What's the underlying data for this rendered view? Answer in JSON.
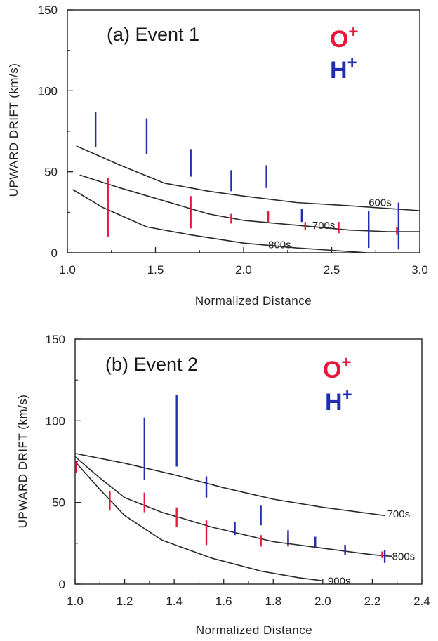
{
  "chart_data": [
    {
      "type": "line",
      "title": "(a) Event 1",
      "xlabel": "Normalized Distance",
      "ylabel": "UPWARD DRIFT (km/s)",
      "xlim": [
        1.0,
        3.0
      ],
      "ylim": [
        0,
        150
      ],
      "xticks": [
        1.0,
        1.5,
        2.0,
        2.5,
        3.0
      ],
      "xtick_labels": [
        "1.0",
        "1.5",
        "2.0",
        "2.5",
        "3.0"
      ],
      "yticks": [
        0,
        50,
        100,
        150
      ],
      "ytick_labels": [
        "0",
        "50",
        "100",
        "150"
      ],
      "legend": [
        {
          "ion": "O",
          "sup": "+",
          "color": "#e8173c"
        },
        {
          "ion": "H",
          "sup": "+",
          "color": "#1f2fb0"
        }
      ],
      "legend_position": "top-right",
      "grid": false,
      "curves": [
        {
          "label": "600s",
          "label_at": [
            2.71,
            31
          ],
          "points": [
            [
              1.05,
              66
            ],
            [
              1.3,
              54
            ],
            [
              1.55,
              43
            ],
            [
              1.8,
              38
            ],
            [
              2.0,
              35
            ],
            [
              2.3,
              31
            ],
            [
              2.6,
              29
            ],
            [
              3.0,
              26
            ]
          ]
        },
        {
          "label": "700s",
          "label_at": [
            2.39,
            17
          ],
          "points": [
            [
              1.07,
              48
            ],
            [
              1.3,
              40
            ],
            [
              1.55,
              32
            ],
            [
              1.8,
              24
            ],
            [
              2.0,
              20
            ],
            [
              2.3,
              17
            ],
            [
              2.6,
              14
            ],
            [
              2.82,
              13
            ],
            [
              3.0,
              13
            ]
          ]
        },
        {
          "label": "800s",
          "label_at": [
            2.14,
            5
          ],
          "points": [
            [
              1.03,
              39
            ],
            [
              1.2,
              28
            ],
            [
              1.45,
              16
            ],
            [
              1.7,
              11
            ],
            [
              2.0,
              6
            ],
            [
              2.3,
              3
            ],
            [
              2.5,
              1.5
            ],
            [
              2.7,
              0
            ]
          ]
        }
      ],
      "series": [
        {
          "name": "O+",
          "color": "#e8173c",
          "bars": [
            {
              "x": 1.23,
              "ymin": 10,
              "ymax": 46
            },
            {
              "x": 1.7,
              "ymin": 15,
              "ymax": 35
            },
            {
              "x": 1.93,
              "ymin": 18,
              "ymax": 24
            },
            {
              "x": 2.14,
              "ymin": 19,
              "ymax": 26
            },
            {
              "x": 2.35,
              "ymin": 14,
              "ymax": 19
            },
            {
              "x": 2.54,
              "ymin": 12,
              "ymax": 19
            },
            {
              "x": 2.71,
              "ymin": 12,
              "ymax": 17
            },
            {
              "x": 2.87,
              "ymin": 11,
              "ymax": 16
            }
          ]
        },
        {
          "name": "H+",
          "color": "#1f2fb0",
          "bars": [
            {
              "x": 1.16,
              "ymin": 65,
              "ymax": 87
            },
            {
              "x": 1.45,
              "ymin": 61,
              "ymax": 83
            },
            {
              "x": 1.7,
              "ymin": 47,
              "ymax": 64
            },
            {
              "x": 1.93,
              "ymin": 38,
              "ymax": 51
            },
            {
              "x": 2.13,
              "ymin": 40,
              "ymax": 54
            },
            {
              "x": 2.33,
              "ymin": 19,
              "ymax": 27
            },
            {
              "x": 2.71,
              "ymin": 3,
              "ymax": 26
            },
            {
              "x": 2.88,
              "ymin": 2,
              "ymax": 31
            }
          ]
        }
      ]
    },
    {
      "type": "line",
      "title": "(b) Event 2",
      "xlabel": "Normalized Distance",
      "ylabel": "UPWARD DRIFT (km/s)",
      "xlim": [
        1.0,
        2.4
      ],
      "ylim": [
        0,
        150
      ],
      "xticks": [
        1.0,
        1.2,
        1.4,
        1.6,
        1.8,
        2.0,
        2.2,
        2.4
      ],
      "xtick_labels": [
        "1.0",
        "1.2",
        "1.4",
        "1.6",
        "1.8",
        "2.0",
        "2.2",
        "2.4"
      ],
      "yticks": [
        0,
        50,
        100,
        150
      ],
      "ytick_labels": [
        "0",
        "50",
        "100",
        "150"
      ],
      "legend": [
        {
          "ion": "O",
          "sup": "+",
          "color": "#e8173c"
        },
        {
          "ion": "H",
          "sup": "+",
          "color": "#1f2fb0"
        }
      ],
      "legend_position": "top-right",
      "grid": false,
      "curves": [
        {
          "label": "700s",
          "label_at": [
            2.26,
            43
          ],
          "points": [
            [
              1.0,
              80
            ],
            [
              1.2,
              74
            ],
            [
              1.4,
              67
            ],
            [
              1.6,
              59
            ],
            [
              1.8,
              52
            ],
            [
              2.0,
              47
            ],
            [
              2.25,
              42
            ]
          ]
        },
        {
          "label": "800s",
          "label_at": [
            2.28,
            17
          ],
          "points": [
            [
              1.0,
              78
            ],
            [
              1.1,
              65
            ],
            [
              1.2,
              53
            ],
            [
              1.35,
              44
            ],
            [
              1.55,
              35
            ],
            [
              1.8,
              26
            ],
            [
              2.0,
              22
            ],
            [
              2.2,
              18
            ],
            [
              2.28,
              17
            ]
          ]
        },
        {
          "label": "900s",
          "label_at": [
            2.02,
            2
          ],
          "points": [
            [
              1.0,
              75
            ],
            [
              1.1,
              58
            ],
            [
              1.2,
              42
            ],
            [
              1.35,
              27
            ],
            [
              1.55,
              16
            ],
            [
              1.75,
              8
            ],
            [
              1.9,
              4
            ],
            [
              2.0,
              2
            ]
          ]
        }
      ],
      "series": [
        {
          "name": "O+",
          "color": "#e8173c",
          "bars": [
            {
              "x": 1.005,
              "ymin": 68,
              "ymax": 75
            },
            {
              "x": 1.14,
              "ymin": 45,
              "ymax": 57
            },
            {
              "x": 1.28,
              "ymin": 44,
              "ymax": 56
            },
            {
              "x": 1.41,
              "ymin": 35,
              "ymax": 47
            },
            {
              "x": 1.53,
              "ymin": 24,
              "ymax": 39
            },
            {
              "x": 1.75,
              "ymin": 23,
              "ymax": 30
            },
            {
              "x": 1.86,
              "ymin": 23,
              "ymax": 30
            },
            {
              "x": 1.97,
              "ymin": 22,
              "ymax": 28
            },
            {
              "x": 2.09,
              "ymin": 19,
              "ymax": 24
            },
            {
              "x": 2.24,
              "ymin": 16,
              "ymax": 20
            }
          ]
        },
        {
          "name": "H+",
          "color": "#1f2fb0",
          "bars": [
            {
              "x": 1.28,
              "ymin": 64,
              "ymax": 102
            },
            {
              "x": 1.41,
              "ymin": 72,
              "ymax": 116
            },
            {
              "x": 1.53,
              "ymin": 53,
              "ymax": 66
            },
            {
              "x": 1.645,
              "ymin": 30,
              "ymax": 38
            },
            {
              "x": 1.75,
              "ymin": 36,
              "ymax": 48
            },
            {
              "x": 1.86,
              "ymin": 24,
              "ymax": 33
            },
            {
              "x": 1.97,
              "ymin": 22,
              "ymax": 29
            },
            {
              "x": 2.09,
              "ymin": 18,
              "ymax": 24
            },
            {
              "x": 2.25,
              "ymin": 13,
              "ymax": 21
            }
          ]
        }
      ]
    }
  ]
}
